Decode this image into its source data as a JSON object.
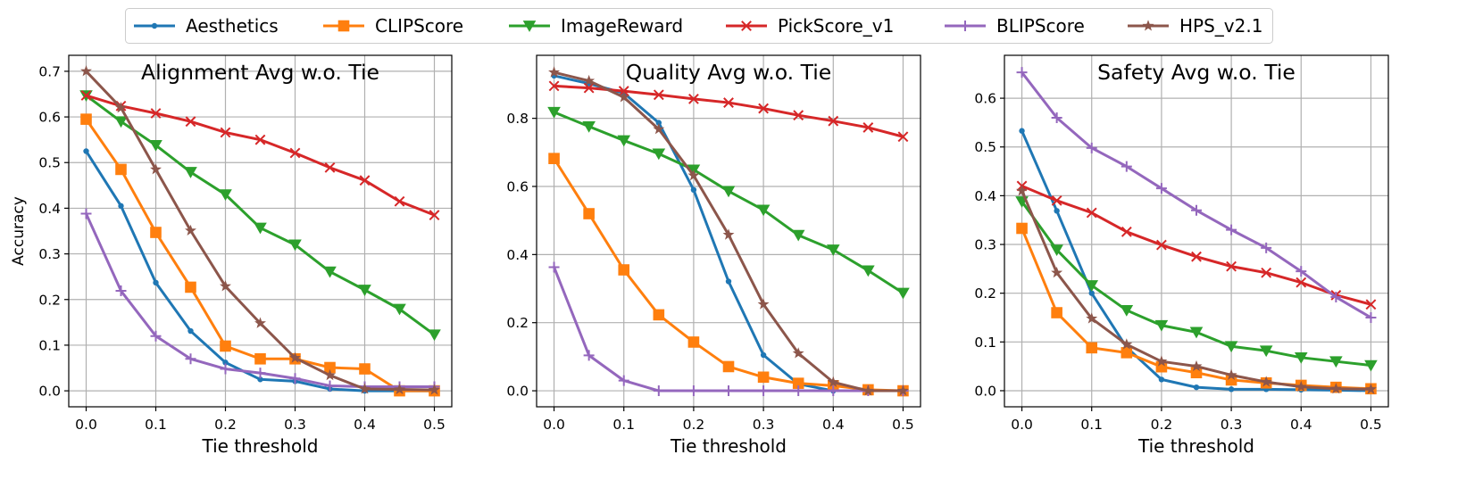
{
  "legend": {
    "placement": "top-center",
    "entries": [
      {
        "name": "Aesthetics",
        "color": "#1f77b4",
        "marker": "circle"
      },
      {
        "name": "CLIPScore",
        "color": "#ff7f0e",
        "marker": "square"
      },
      {
        "name": "ImageReward",
        "color": "#2ca02c",
        "marker": "triangle-down"
      },
      {
        "name": "PickScore_v1",
        "color": "#d62728",
        "marker": "x"
      },
      {
        "name": "BLIPScore",
        "color": "#9467bd",
        "marker": "plus"
      },
      {
        "name": "HPS_v2.1",
        "color": "#8c564b",
        "marker": "star"
      }
    ]
  },
  "chart_data": [
    {
      "type": "line",
      "title": "Alignment Avg w.o. Tie",
      "xlabel": "Tie threshold",
      "ylabel": "Accuracy",
      "xlim": [
        -0.025,
        0.525
      ],
      "ylim": [
        -0.035,
        0.735
      ],
      "xticks": [
        "0.0",
        "0.1",
        "0.2",
        "0.3",
        "0.4",
        "0.5"
      ],
      "yticks": [
        "0.0",
        "0.1",
        "0.2",
        "0.3",
        "0.4",
        "0.5",
        "0.6",
        "0.7"
      ],
      "grid": true,
      "x": [
        0.0,
        0.05,
        0.1,
        0.15,
        0.2,
        0.25,
        0.3,
        0.35,
        0.4,
        0.45,
        0.5
      ],
      "series": [
        {
          "name": "Aesthetics",
          "values": [
            0.525,
            0.405,
            0.237,
            0.131,
            0.062,
            0.025,
            0.021,
            0.004,
            0.0,
            0.0,
            0.0
          ]
        },
        {
          "name": "CLIPScore",
          "values": [
            0.595,
            0.485,
            0.347,
            0.227,
            0.098,
            0.07,
            0.07,
            0.051,
            0.048,
            0.0,
            0.0
          ]
        },
        {
          "name": "ImageReward",
          "values": [
            0.647,
            0.59,
            0.538,
            0.479,
            0.43,
            0.357,
            0.32,
            0.261,
            0.221,
            0.179,
            0.123
          ]
        },
        {
          "name": "PickScore_v1",
          "values": [
            0.647,
            0.624,
            0.608,
            0.59,
            0.566,
            0.55,
            0.521,
            0.489,
            0.461,
            0.415,
            0.385
          ]
        },
        {
          "name": "BLIPScore",
          "values": [
            0.388,
            0.219,
            0.12,
            0.07,
            0.048,
            0.039,
            0.027,
            0.011,
            0.009,
            0.009,
            0.009
          ]
        },
        {
          "name": "HPS_v2.1",
          "values": [
            0.7,
            0.62,
            0.485,
            0.351,
            0.229,
            0.148,
            0.072,
            0.034,
            0.004,
            0.003,
            0.002
          ]
        }
      ]
    },
    {
      "type": "line",
      "title": "Quality Avg w.o. Tie",
      "xlabel": "Tie threshold",
      "ylabel": "",
      "xlim": [
        -0.025,
        0.525
      ],
      "ylim": [
        -0.047,
        0.985
      ],
      "xticks": [
        "0.0",
        "0.1",
        "0.2",
        "0.3",
        "0.4",
        "0.5"
      ],
      "yticks": [
        "0.0",
        "0.2",
        "0.4",
        "0.6",
        "0.8"
      ],
      "grid": true,
      "x": [
        0.0,
        0.05,
        0.1,
        0.15,
        0.2,
        0.25,
        0.3,
        0.35,
        0.4,
        0.45,
        0.5
      ],
      "series": [
        {
          "name": "Aesthetics",
          "values": [
            0.925,
            0.902,
            0.874,
            0.787,
            0.59,
            0.321,
            0.105,
            0.02,
            0.0,
            0.0,
            0.0
          ]
        },
        {
          "name": "CLIPScore",
          "values": [
            0.682,
            0.52,
            0.355,
            0.223,
            0.143,
            0.071,
            0.04,
            0.022,
            0.015,
            0.003,
            0.0
          ]
        },
        {
          "name": "ImageReward",
          "values": [
            0.818,
            0.776,
            0.735,
            0.696,
            0.649,
            0.586,
            0.531,
            0.457,
            0.414,
            0.353,
            0.287
          ]
        },
        {
          "name": "PickScore_v1",
          "values": [
            0.895,
            0.889,
            0.88,
            0.869,
            0.857,
            0.846,
            0.829,
            0.809,
            0.792,
            0.773,
            0.746
          ]
        },
        {
          "name": "BLIPScore",
          "values": [
            0.363,
            0.104,
            0.03,
            0.0,
            0.0,
            0.0,
            0.0,
            0.0,
            0.0,
            0.0,
            0.0
          ]
        },
        {
          "name": "HPS_v2.1",
          "values": [
            0.935,
            0.91,
            0.862,
            0.768,
            0.632,
            0.458,
            0.254,
            0.11,
            0.025,
            0.0,
            0.0
          ]
        }
      ]
    },
    {
      "type": "line",
      "title": "Safety Avg w.o. Tie",
      "xlabel": "Tie threshold",
      "ylabel": "",
      "xlim": [
        -0.025,
        0.525
      ],
      "ylim": [
        -0.033,
        0.688
      ],
      "xticks": [
        "0.0",
        "0.1",
        "0.2",
        "0.3",
        "0.4",
        "0.5"
      ],
      "yticks": [
        "0.0",
        "0.1",
        "0.2",
        "0.3",
        "0.4",
        "0.5",
        "0.6"
      ],
      "grid": true,
      "x": [
        0.0,
        0.05,
        0.1,
        0.15,
        0.2,
        0.25,
        0.3,
        0.35,
        0.4,
        0.45,
        0.5
      ],
      "series": [
        {
          "name": "Aesthetics",
          "values": [
            0.533,
            0.369,
            0.2,
            0.089,
            0.023,
            0.007,
            0.003,
            0.003,
            0.002,
            0.001,
            0.0
          ]
        },
        {
          "name": "CLIPScore",
          "values": [
            0.333,
            0.16,
            0.088,
            0.078,
            0.049,
            0.037,
            0.022,
            0.016,
            0.011,
            0.007,
            0.004
          ]
        },
        {
          "name": "ImageReward",
          "values": [
            0.388,
            0.289,
            0.216,
            0.165,
            0.134,
            0.12,
            0.091,
            0.082,
            0.068,
            0.06,
            0.052
          ]
        },
        {
          "name": "PickScore_v1",
          "values": [
            0.42,
            0.39,
            0.365,
            0.326,
            0.299,
            0.275,
            0.255,
            0.242,
            0.222,
            0.196,
            0.177
          ]
        },
        {
          "name": "BLIPScore",
          "values": [
            0.653,
            0.56,
            0.498,
            0.46,
            0.415,
            0.37,
            0.33,
            0.293,
            0.245,
            0.192,
            0.15
          ]
        },
        {
          "name": "HPS_v2.1",
          "values": [
            0.41,
            0.242,
            0.148,
            0.095,
            0.06,
            0.05,
            0.032,
            0.018,
            0.008,
            0.004,
            0.003
          ]
        }
      ]
    }
  ]
}
